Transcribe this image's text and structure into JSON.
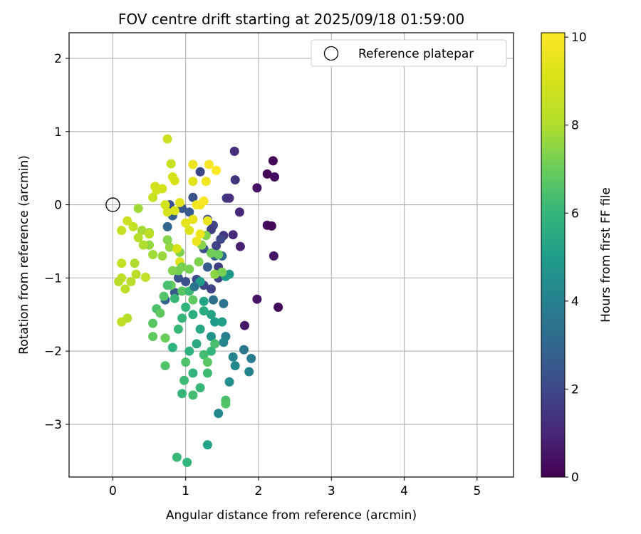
{
  "chart_data": {
    "type": "scatter",
    "title": "FOV centre drift starting at 2025/09/18 01:59:00",
    "xlabel": "Angular distance from reference (arcmin)",
    "ylabel": "Rotation from reference (arcmin)",
    "xlim": [
      -0.6,
      5.5
    ],
    "ylim": [
      -3.72,
      2.35
    ],
    "xticks": [
      0,
      1,
      2,
      3,
      4,
      5
    ],
    "xtick_labels": [
      "0",
      "1",
      "2",
      "3",
      "4",
      "5"
    ],
    "yticks": [
      2,
      1,
      0,
      -1,
      -2,
      -3
    ],
    "ytick_labels": [
      "2",
      "1",
      "0",
      "−1",
      "−2",
      "−3"
    ],
    "grid": true,
    "legend": {
      "placement": "top-right",
      "entries": [
        {
          "label": "Reference platepar",
          "marker": "open-circle",
          "color": "#000000"
        }
      ]
    },
    "colorbar": {
      "label": "Hours from first FF file",
      "colormap": "viridis",
      "range": [
        0,
        10.1
      ],
      "ticks": [
        0,
        2,
        4,
        6,
        8,
        10
      ],
      "tick_labels": [
        "0",
        "2",
        "4",
        "6",
        "8",
        "10"
      ]
    },
    "reference_point": {
      "x": 0,
      "y": 0
    },
    "points": [
      [
        2.2,
        0.6,
        0.1
      ],
      [
        2.12,
        0.42,
        0.2
      ],
      [
        2.22,
        0.38,
        0.3
      ],
      [
        1.98,
        0.23,
        0.4
      ],
      [
        1.67,
        0.73,
        1.2
      ],
      [
        1.68,
        0.34,
        1.4
      ],
      [
        2.12,
        -0.28,
        0.3
      ],
      [
        2.18,
        -0.29,
        0.2
      ],
      [
        2.21,
        -0.7,
        0.5
      ],
      [
        1.74,
        -0.1,
        1.0
      ],
      [
        1.65,
        -0.41,
        1.1
      ],
      [
        1.75,
        -0.57,
        0.8
      ],
      [
        1.56,
        0.09,
        1.6
      ],
      [
        1.6,
        0.09,
        1.3
      ],
      [
        1.98,
        -1.29,
        0.5
      ],
      [
        2.27,
        -1.4,
        0.2
      ],
      [
        1.81,
        -1.65,
        0.6
      ],
      [
        1.52,
        -0.42,
        1.5
      ],
      [
        1.48,
        -0.47,
        2.0
      ],
      [
        1.42,
        -0.56,
        1.8
      ],
      [
        1.38,
        -0.28,
        1.9
      ],
      [
        1.35,
        -0.34,
        1.7
      ],
      [
        1.3,
        -0.2,
        2.1
      ],
      [
        1.25,
        -0.6,
        2.3
      ],
      [
        1.2,
        0.45,
        2.0
      ],
      [
        1.1,
        0.1,
        2.3
      ],
      [
        1.05,
        -0.1,
        2.6
      ],
      [
        0.95,
        -0.05,
        2.5
      ],
      [
        0.78,
        0.0,
        2.2
      ],
      [
        0.82,
        -0.15,
        2.8
      ],
      [
        0.75,
        -0.3,
        3.0
      ],
      [
        0.72,
        -1.3,
        2.9
      ],
      [
        0.85,
        -1.2,
        2.5
      ],
      [
        0.9,
        -1.0,
        2.4
      ],
      [
        1.0,
        -1.05,
        2.2
      ],
      [
        1.15,
        -1.02,
        2.1
      ],
      [
        1.25,
        -1.1,
        2.0
      ],
      [
        1.35,
        -1.15,
        1.8
      ],
      [
        1.45,
        -1.0,
        1.9
      ],
      [
        1.45,
        -0.85,
        1.7
      ],
      [
        1.3,
        -0.85,
        2.6
      ],
      [
        1.4,
        -0.7,
        2.9
      ],
      [
        1.5,
        -0.7,
        3.1
      ],
      [
        1.38,
        -1.3,
        3.3
      ],
      [
        1.52,
        -1.35,
        3.4
      ],
      [
        1.8,
        -1.98,
        3.6
      ],
      [
        1.9,
        -2.1,
        3.8
      ],
      [
        1.87,
        -2.28,
        4.0
      ],
      [
        1.65,
        -2.08,
        4.1
      ],
      [
        1.68,
        -2.2,
        4.3
      ],
      [
        1.6,
        -2.42,
        4.5
      ],
      [
        1.45,
        -2.85,
        4.3
      ],
      [
        1.55,
        -1.8,
        3.9
      ],
      [
        1.52,
        -1.88,
        4.2
      ],
      [
        1.35,
        -1.8,
        4.6
      ],
      [
        1.4,
        -1.6,
        4.9
      ],
      [
        1.5,
        -1.6,
        5.1
      ],
      [
        1.6,
        -0.95,
        4.8
      ],
      [
        1.55,
        -0.98,
        5.0
      ],
      [
        1.3,
        -3.28,
        5.2
      ],
      [
        1.35,
        -1.5,
        5.3
      ],
      [
        1.25,
        -1.45,
        5.6
      ],
      [
        1.1,
        -1.5,
        5.7
      ],
      [
        1.2,
        -1.7,
        5.4
      ],
      [
        1.15,
        -1.9,
        5.5
      ],
      [
        1.05,
        -2.0,
        5.8
      ],
      [
        1.0,
        -1.4,
        5.9
      ],
      [
        0.95,
        -1.55,
        6.0
      ],
      [
        0.9,
        -1.7,
        6.1
      ],
      [
        0.82,
        -1.95,
        5.8
      ],
      [
        1.1,
        -2.3,
        5.9
      ],
      [
        1.2,
        -2.5,
        6.1
      ],
      [
        1.3,
        -2.3,
        6.2
      ],
      [
        1.25,
        -2.05,
        6.3
      ],
      [
        1.35,
        -2.0,
        6.0
      ],
      [
        1.4,
        -1.9,
        6.4
      ],
      [
        1.0,
        -2.15,
        6.5
      ],
      [
        0.98,
        -2.4,
        6.2
      ],
      [
        1.1,
        -2.6,
        6.3
      ],
      [
        0.95,
        -2.58,
        6.0
      ],
      [
        0.88,
        -3.45,
        6.1
      ],
      [
        1.02,
        -3.52,
        6.0
      ],
      [
        1.55,
        -2.67,
        6.4
      ],
      [
        1.55,
        -2.72,
        6.6
      ],
      [
        1.3,
        -2.15,
        6.7
      ],
      [
        1.1,
        -1.3,
        6.8
      ],
      [
        0.95,
        -1.18,
        6.7
      ],
      [
        0.8,
        -1.1,
        6.9
      ],
      [
        0.7,
        -1.25,
        6.6
      ],
      [
        0.6,
        -1.42,
        6.5
      ],
      [
        0.55,
        -1.62,
        6.7
      ],
      [
        0.55,
        -1.8,
        6.8
      ],
      [
        0.65,
        -1.48,
        6.8
      ],
      [
        0.72,
        -1.82,
        7.0
      ],
      [
        0.72,
        -2.2,
        6.6
      ],
      [
        0.9,
        -0.9,
        7.1
      ],
      [
        1.05,
        -0.88,
        7.2
      ],
      [
        1.18,
        -0.78,
        7.3
      ],
      [
        1.22,
        -0.55,
        7.4
      ],
      [
        1.28,
        -0.42,
        7.3
      ],
      [
        1.4,
        -0.95,
        7.5
      ],
      [
        1.5,
        -0.92,
        7.2
      ],
      [
        1.45,
        -0.68,
        7.0
      ],
      [
        1.35,
        -0.66,
        7.1
      ],
      [
        0.92,
        -0.65,
        7.3
      ],
      [
        0.78,
        -0.58,
        7.6
      ],
      [
        0.75,
        -0.48,
        7.4
      ],
      [
        0.68,
        -0.7,
        7.7
      ],
      [
        0.55,
        -0.68,
        7.8
      ],
      [
        0.5,
        -0.55,
        7.6
      ],
      [
        0.5,
        -0.38,
        7.7
      ],
      [
        0.4,
        -0.35,
        7.9
      ],
      [
        0.42,
        -0.55,
        8.0
      ],
      [
        0.35,
        -0.45,
        8.1
      ],
      [
        0.3,
        -0.8,
        8.0
      ],
      [
        0.32,
        -0.95,
        8.2
      ],
      [
        0.25,
        -1.05,
        8.1
      ],
      [
        0.12,
        -1.0,
        8.3
      ],
      [
        0.08,
        -1.05,
        8.2
      ],
      [
        0.17,
        -1.15,
        8.3
      ],
      [
        0.12,
        -1.6,
        8.4
      ],
      [
        0.2,
        -1.55,
        8.1
      ],
      [
        0.12,
        -0.8,
        8.5
      ],
      [
        0.12,
        -0.35,
        8.6
      ],
      [
        0.2,
        -0.22,
        8.7
      ],
      [
        0.35,
        -0.05,
        7.8
      ],
      [
        0.28,
        -0.3,
        8.5
      ],
      [
        0.45,
        -0.99,
        8.4
      ],
      [
        0.5,
        -0.4,
        8.3
      ],
      [
        0.55,
        0.1,
        8.6
      ],
      [
        0.6,
        0.2,
        8.8
      ],
      [
        0.58,
        0.25,
        8.9
      ],
      [
        0.68,
        0.22,
        9.0
      ],
      [
        0.75,
        0.9,
        8.7
      ],
      [
        0.8,
        0.56,
        8.6
      ],
      [
        0.82,
        0.38,
        9.0
      ],
      [
        0.85,
        0.33,
        9.1
      ],
      [
        0.72,
        0.0,
        8.9
      ],
      [
        0.75,
        -0.1,
        9.0
      ],
      [
        0.85,
        -0.08,
        9.2
      ],
      [
        0.92,
        0.03,
        9.3
      ],
      [
        1.0,
        -0.25,
        9.4
      ],
      [
        1.05,
        -0.35,
        9.2
      ],
      [
        1.1,
        -0.2,
        9.5
      ],
      [
        1.15,
        0.0,
        9.7
      ],
      [
        1.2,
        0.0,
        9.8
      ],
      [
        1.15,
        -0.5,
        9.6
      ],
      [
        1.2,
        -0.4,
        9.7
      ],
      [
        1.28,
        0.32,
        9.8
      ],
      [
        1.32,
        0.55,
        9.9
      ],
      [
        1.42,
        0.47,
        10.0
      ],
      [
        1.1,
        0.55,
        9.6
      ],
      [
        1.1,
        0.32,
        9.4
      ],
      [
        1.25,
        0.05,
        9.9
      ],
      [
        1.3,
        -0.22,
        9.6
      ],
      [
        0.88,
        -0.6,
        9.1
      ],
      [
        0.92,
        -0.78,
        9.3
      ],
      [
        0.82,
        -0.9,
        7.3
      ],
      [
        0.95,
        -0.85,
        7.2
      ],
      [
        1.05,
        -1.18,
        6.2
      ],
      [
        0.85,
        -1.28,
        6.1
      ],
      [
        0.75,
        -1.1,
        6.4
      ],
      [
        1.25,
        -1.32,
        5.3
      ],
      [
        1.2,
        -1.05,
        5.0
      ],
      [
        1.12,
        -1.12,
        3.5
      ]
    ]
  }
}
